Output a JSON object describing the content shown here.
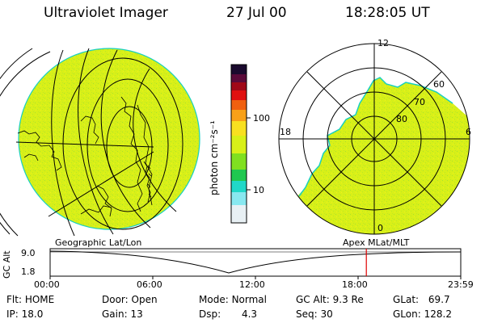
{
  "header": {
    "app_title": "Ultraviolet Imager",
    "date": "27 Jul 00",
    "time": "18:28:05 UT"
  },
  "colorbar": {
    "unit_label": "photon cm⁻²s⁻¹",
    "tick_labels": [
      "100",
      "10"
    ]
  },
  "polar_plot": {
    "mlt_labels": {
      "top": "12",
      "left": "18",
      "right": "6",
      "bottom": "0"
    },
    "lat_labels": [
      "60",
      "70",
      "80"
    ]
  },
  "panel_labels": {
    "left": "Geographic Lat/Lon",
    "right": "Apex MLat/MLT"
  },
  "altitude_plot": {
    "axis_label": "GC Alt",
    "y_ticks": [
      "9.0",
      "1.8"
    ],
    "x_ticks": [
      "00:00",
      "06:00",
      "12:00",
      "18:00",
      "23:59"
    ],
    "marker_time_hours": 18.47
  },
  "status": {
    "flt": {
      "label": "Flt:",
      "value": "HOME"
    },
    "ip": {
      "label": "IP:",
      "value": "18.0"
    },
    "door": {
      "label": "Door:",
      "value": "Open"
    },
    "gain": {
      "label": "Gain:",
      "value": "13"
    },
    "mode": {
      "label": "Mode:",
      "value": "Normal"
    },
    "dsp": {
      "label": "Dsp:",
      "value": "4.3"
    },
    "gcalt": {
      "label": "GC Alt:",
      "value": "9.3 Re"
    },
    "seq": {
      "label": "Seq:",
      "value": "30"
    },
    "glat": {
      "label": "GLat:",
      "value": "69.7"
    },
    "glon": {
      "label": "GLon:",
      "value": "128.2"
    }
  },
  "colors": {
    "image_fill": "#d8f018",
    "image_edge": "#18d0c0",
    "marker": "#e00000"
  }
}
